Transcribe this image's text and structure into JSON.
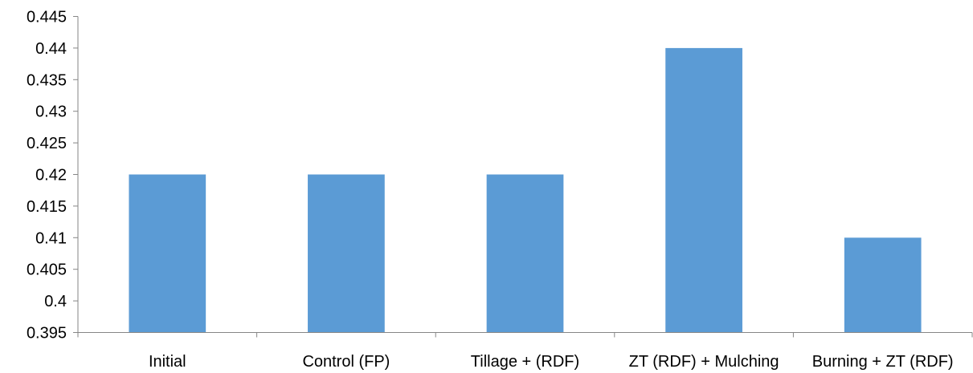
{
  "chart_data": {
    "type": "bar",
    "title": "",
    "xlabel": "",
    "ylabel": "",
    "categories": [
      "Initial",
      "Control (FP)",
      "Tillage + (RDF)",
      "ZT (RDF) + Mulching",
      "Burning + ZT (RDF)"
    ],
    "values": [
      0.42,
      0.42,
      0.42,
      0.44,
      0.41
    ],
    "ylim": [
      0.395,
      0.445
    ],
    "yticks": [
      "0.395",
      "0.4",
      "0.405",
      "0.41",
      "0.415",
      "0.42",
      "0.425",
      "0.43",
      "0.435",
      "0.44",
      "0.445"
    ],
    "grid": false,
    "legend": "none",
    "bar_color": "#5B9BD5",
    "axis_color": "#868686"
  }
}
